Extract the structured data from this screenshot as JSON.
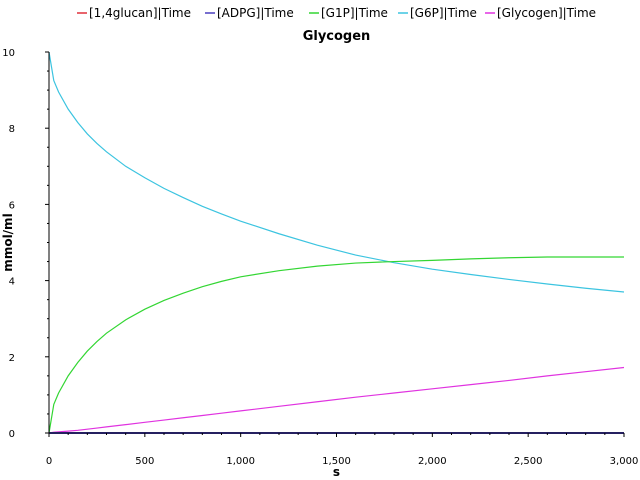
{
  "chart_data": {
    "type": "line",
    "title": "Glycogen",
    "xlabel": "s",
    "ylabel": "mmol/ml",
    "xlim": [
      0,
      3000
    ],
    "ylim": [
      0,
      10
    ],
    "xticks": [
      0,
      500,
      1000,
      1500,
      2000,
      2500,
      3000
    ],
    "xtick_labels": [
      "0",
      "500",
      "1,000",
      "1,500",
      "2,000",
      "2,500",
      "3,000"
    ],
    "yticks": [
      0,
      2,
      4,
      6,
      8,
      10
    ],
    "ytick_labels": [
      "0",
      "2",
      "4",
      "6",
      "8",
      "10"
    ],
    "grid": false,
    "legend_position": "top",
    "x": [
      0,
      25,
      50,
      100,
      150,
      200,
      250,
      300,
      400,
      500,
      600,
      700,
      800,
      900,
      1000,
      1200,
      1400,
      1600,
      1800,
      2000,
      2200,
      2400,
      2600,
      2800,
      3000
    ],
    "series": [
      {
        "name": "[1,4glucan]|Time",
        "color": "#e0303a",
        "values": [
          0,
          0,
          0,
          0,
          0,
          0,
          0,
          0,
          0,
          0,
          0,
          0,
          0,
          0,
          0,
          0,
          0,
          0,
          0,
          0,
          0,
          0,
          0,
          0,
          0
        ]
      },
      {
        "name": "[ADPG]|Time",
        "color": "#4a3fbf",
        "values": [
          0,
          0,
          0,
          0,
          0,
          0,
          0,
          0,
          0,
          0,
          0,
          0,
          0,
          0,
          0,
          0,
          0,
          0,
          0,
          0,
          0,
          0,
          0,
          0,
          0
        ]
      },
      {
        "name": "[G1P]|Time",
        "color": "#33d633",
        "values": [
          0,
          0.75,
          1.05,
          1.5,
          1.85,
          2.15,
          2.4,
          2.62,
          2.97,
          3.25,
          3.48,
          3.67,
          3.84,
          3.98,
          4.1,
          4.26,
          4.38,
          4.46,
          4.5,
          4.53,
          4.57,
          4.6,
          4.62,
          4.62,
          4.62
        ]
      },
      {
        "name": "[G6P]|Time",
        "color": "#3cc4e0",
        "values": [
          10,
          9.25,
          8.95,
          8.5,
          8.15,
          7.85,
          7.6,
          7.38,
          7.0,
          6.7,
          6.42,
          6.18,
          5.95,
          5.75,
          5.56,
          5.23,
          4.93,
          4.67,
          4.47,
          4.3,
          4.16,
          4.03,
          3.91,
          3.8,
          3.7
        ]
      },
      {
        "name": "[Glycogen]|Time",
        "color": "#e033e0",
        "values": [
          0,
          0.02,
          0.03,
          0.05,
          0.07,
          0.1,
          0.13,
          0.16,
          0.22,
          0.28,
          0.34,
          0.4,
          0.46,
          0.52,
          0.58,
          0.7,
          0.82,
          0.94,
          1.05,
          1.16,
          1.27,
          1.38,
          1.5,
          1.61,
          1.72
        ]
      }
    ]
  }
}
